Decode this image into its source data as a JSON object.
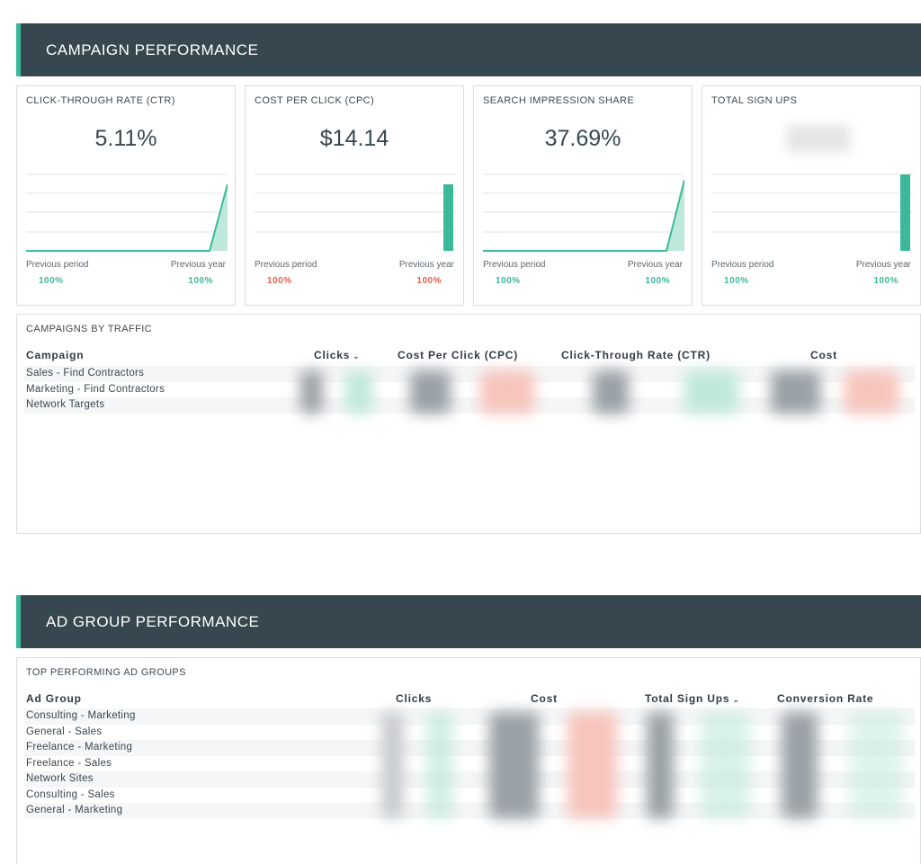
{
  "campaign_section": {
    "title": "CAMPAIGN PERFORMANCE"
  },
  "kpis": [
    {
      "title": "CLICK-THROUGH RATE (CTR)",
      "value": "5.11%",
      "chart": "line",
      "prev_period_label": "Previous period",
      "prev_year_label": "Previous year",
      "prev_period_pct": "100%",
      "prev_year_pct": "100%",
      "prev_period_color": "#3bb99a",
      "prev_year_color": "#3bb99a"
    },
    {
      "title": "COST PER CLICK (CPC)",
      "value": "$14.14",
      "chart": "bar",
      "prev_period_label": "Previous period",
      "prev_year_label": "Previous year",
      "prev_period_pct": "100%",
      "prev_year_pct": "100%",
      "prev_period_color": "#e2604d",
      "prev_year_color": "#e2604d"
    },
    {
      "title": "SEARCH IMPRESSION SHARE",
      "value": "37.69%",
      "chart": "line",
      "prev_period_label": "Previous period",
      "prev_year_label": "Previous year",
      "prev_period_pct": "100%",
      "prev_year_pct": "100%",
      "prev_period_color": "#3bb99a",
      "prev_year_color": "#3bb99a"
    },
    {
      "title": "TOTAL SIGN UPS",
      "value": "",
      "chart": "bar",
      "prev_period_label": "Previous period",
      "prev_year_label": "Previous year",
      "prev_period_pct": "100%",
      "prev_year_pct": "100%",
      "prev_period_color": "#3bb99a",
      "prev_year_color": "#3bb99a"
    }
  ],
  "campaigns_table": {
    "title": "CAMPAIGNS BY TRAFFIC",
    "columns": [
      "Campaign",
      "Clicks",
      "Cost Per Click (CPC)",
      "Click-Through Rate (CTR)",
      "Cost"
    ],
    "sorted_column": "Clicks",
    "rows": [
      "Sales - Find Contractors",
      "Marketing - Find Contractors",
      "Network Targets"
    ]
  },
  "adgroup_section": {
    "title": "AD GROUP PERFORMANCE"
  },
  "adgroups_table": {
    "title": "TOP PERFORMING AD GROUPS",
    "columns": [
      "Ad Group",
      "Clicks",
      "Cost",
      "Total Sign Ups",
      "Conversion Rate"
    ],
    "sorted_column": "Total Sign Ups",
    "rows": [
      "Consulting - Marketing",
      "General - Sales",
      "Freelance - Marketing",
      "Freelance - Sales",
      "Network Sites",
      "Consulting - Sales",
      "General - Marketing"
    ]
  },
  "colors": {
    "header_bg": "#37474f",
    "accent": "#3bb99a",
    "negative": "#e2604d"
  }
}
